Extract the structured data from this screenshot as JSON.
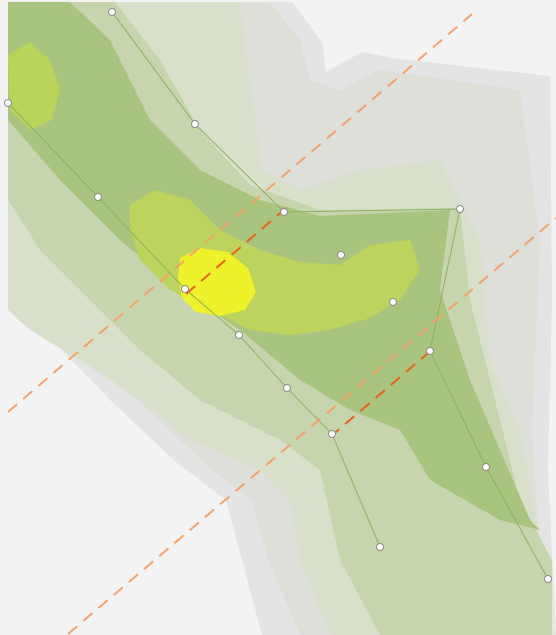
{
  "map": {
    "background_color": "#f3f3f3",
    "density_palette": [
      "#e8e8e8",
      "#e2e2e2",
      "#dcdcd4",
      "#dbe2d0",
      "#c8d6b2",
      "#bccf9c",
      "#a9c47e",
      "#bfd65a",
      "#eef22a"
    ],
    "guide_line_color": "#f4a26a",
    "guide_line_intersect_color": "#e8631f",
    "vertex_fill": "#ffffff",
    "vertex_stroke": "#8c8c8c"
  },
  "layers": [
    {
      "name": "density-surface",
      "visible": true
    },
    {
      "name": "route-polygon",
      "visible": true
    },
    {
      "name": "guide-lines",
      "visible": true,
      "style": "dashed"
    }
  ]
}
